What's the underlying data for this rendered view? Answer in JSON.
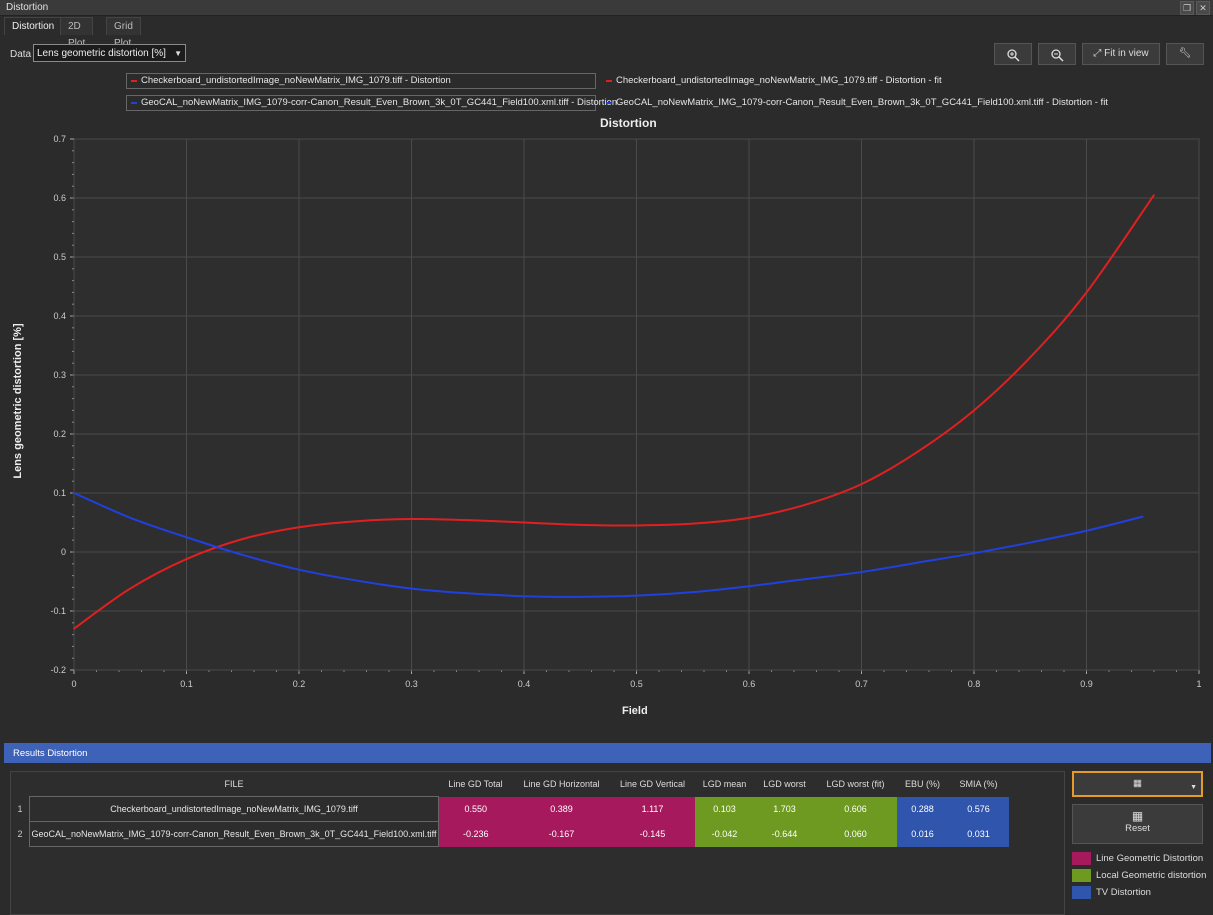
{
  "window": {
    "title": "Distortion"
  },
  "tabs": [
    {
      "label": "Distortion",
      "active": true
    },
    {
      "label": "2D Plot",
      "active": false
    },
    {
      "label": "Grid Plot",
      "active": false
    }
  ],
  "data_selector": {
    "label": "Data",
    "value": "Lens geometric distortion [%]"
  },
  "toolbar": {
    "zoom_in_icon": "zoom-in-icon",
    "zoom_out_icon": "zoom-out-icon",
    "fit_label": "Fit in view",
    "settings_icon": "wrench-icon"
  },
  "legend": [
    {
      "label": "Checkerboard_undistortedImage_noNewMatrix_IMG_1079.tiff - Distortion",
      "color": "#e02020"
    },
    {
      "label": "Checkerboard_undistortedImage_noNewMatrix_IMG_1079.tiff - Distortion - fit",
      "color": "#e02020"
    },
    {
      "label": "GeoCAL_noNewMatrix_IMG_1079-corr-Canon_Result_Even_Brown_3k_0T_GC441_Field100.xml.tiff - Distortion",
      "color": "#2040e0"
    },
    {
      "label": "GeoCAL_noNewMatrix_IMG_1079-corr-Canon_Result_Even_Brown_3k_0T_GC441_Field100.xml.tiff - Distortion - fit",
      "color": "#2040e0"
    }
  ],
  "chart_data": {
    "type": "line",
    "title": "Distortion",
    "xlabel": "Field",
    "ylabel": "Lens geometric distortion [%]",
    "xlim": [
      0,
      1
    ],
    "ylim": [
      -0.2,
      0.7
    ],
    "xticks": [
      "0",
      "0.1",
      "0.2",
      "0.3",
      "0.4",
      "0.5",
      "0.6",
      "0.7",
      "0.8",
      "0.9",
      "1"
    ],
    "yticks": [
      "-0.2",
      "-0.1",
      "0",
      "0.1",
      "0.2",
      "0.3",
      "0.4",
      "0.5",
      "0.6",
      "0.7"
    ],
    "grid": true,
    "series": [
      {
        "name": "Checkerboard_undistortedImage_noNewMatrix_IMG_1079.tiff - Distortion",
        "color": "#e02020",
        "x": [
          0,
          0.05,
          0.1,
          0.15,
          0.2,
          0.25,
          0.3,
          0.35,
          0.4,
          0.45,
          0.5,
          0.55,
          0.6,
          0.65,
          0.7,
          0.75,
          0.8,
          0.85,
          0.9,
          0.96
        ],
        "y": [
          -0.13,
          -0.062,
          -0.012,
          0.022,
          0.042,
          0.052,
          0.056,
          0.054,
          0.05,
          0.046,
          0.045,
          0.048,
          0.058,
          0.08,
          0.115,
          0.17,
          0.24,
          0.33,
          0.44,
          0.605
        ]
      },
      {
        "name": "GeoCAL_noNewMatrix_IMG_1079-corr-Canon_Result_Even_Brown_3k_0T_GC441_Field100.xml.tiff - Distortion",
        "color": "#2040e0",
        "x": [
          0,
          0.05,
          0.1,
          0.15,
          0.2,
          0.25,
          0.3,
          0.35,
          0.4,
          0.45,
          0.5,
          0.55,
          0.6,
          0.65,
          0.7,
          0.75,
          0.8,
          0.85,
          0.9,
          0.95
        ],
        "y": [
          0.1,
          0.058,
          0.025,
          -0.005,
          -0.03,
          -0.048,
          -0.062,
          -0.07,
          -0.075,
          -0.076,
          -0.074,
          -0.068,
          -0.058,
          -0.046,
          -0.034,
          -0.018,
          -0.002,
          0.016,
          0.036,
          0.06
        ]
      }
    ]
  },
  "results": {
    "title": "Results Distortion",
    "columns": [
      "FILE",
      "Line GD Total",
      "Line GD Horizontal",
      "Line GD Vertical",
      "LGD mean",
      "LGD worst",
      "LGD worst (fit)",
      "EBU (%)",
      "SMIA (%)"
    ],
    "rows": [
      {
        "num": "1",
        "file": "Checkerboard_undistortedImage_noNewMatrix_IMG_1079.tiff",
        "values": [
          "0.550",
          "0.389",
          "1.117",
          "0.103",
          "1.703",
          "0.606",
          "0.288",
          "0.576"
        ]
      },
      {
        "num": "2",
        "file": "GeoCAL_noNewMatrix_IMG_1079-corr-Canon_Result_Even_Brown_3k_0T_GC441_Field100.xml.tiff",
        "values": [
          "-0.236",
          "-0.167",
          "-0.145",
          "-0.042",
          "-0.644",
          "0.060",
          "0.016",
          "0.031"
        ]
      }
    ],
    "column_groups": [
      "mag",
      "mag",
      "mag",
      "grn",
      "grn",
      "grn",
      "blu",
      "blu"
    ]
  },
  "side_panel": {
    "table_icon": "table-icon",
    "reset_label": "Reset",
    "legend": [
      {
        "label": "Line Geometric Distortion",
        "color": "#a61a5d"
      },
      {
        "label": "Local Geometric distortion",
        "color": "#6f9a21"
      },
      {
        "label": "TV Distortion",
        "color": "#2f55ad"
      }
    ]
  }
}
